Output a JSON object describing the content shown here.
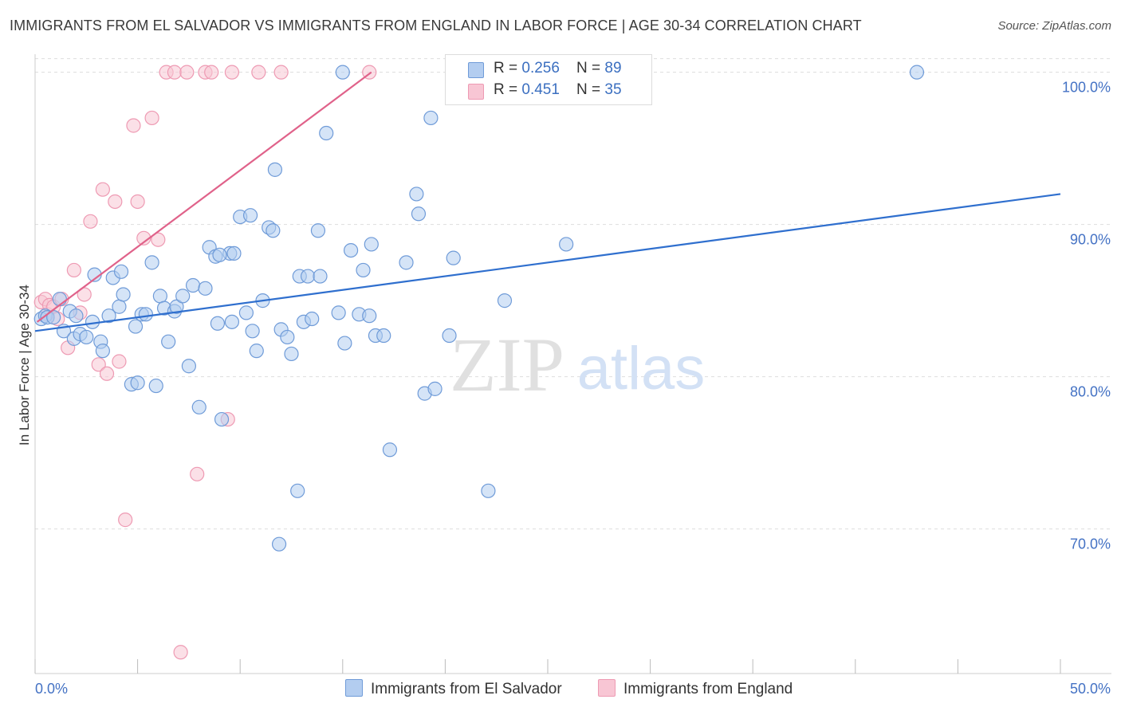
{
  "title": "IMMIGRANTS FROM EL SALVADOR VS IMMIGRANTS FROM ENGLAND IN LABOR FORCE | AGE 30-34 CORRELATION CHART",
  "source": "Source: ZipAtlas.com",
  "watermark": {
    "zip": "ZIP",
    "atlas": "atlas"
  },
  "colors": {
    "blue_fill": "#b3cdf0",
    "blue_stroke": "#6f9bd8",
    "blue_line": "#2f6fce",
    "pink_fill": "#f8c6d4",
    "pink_stroke": "#ee9ab3",
    "pink_line": "#e0628a",
    "axis_text": "#4472c4",
    "grid": "#dddddd"
  },
  "legend": {
    "rows": [
      {
        "r_label": "R = ",
        "r_value": "0.256",
        "n_label": "N = ",
        "n_value": "89"
      },
      {
        "r_label": "R = ",
        "r_value": "0.451",
        "n_label": "N = ",
        "n_value": "35"
      }
    ]
  },
  "bottom_legend": {
    "el_salvador": "Immigrants from El Salvador",
    "england": "Immigrants from England"
  },
  "chart_data": {
    "type": "scatter",
    "title": "IMMIGRANTS FROM EL SALVADOR VS IMMIGRANTS FROM ENGLAND IN LABOR FORCE | AGE 30-34 CORRELATION CHART",
    "xlabel": "",
    "ylabel": "In Labor Force | Age 30-34",
    "xlim": [
      0,
      50
    ],
    "ylim": [
      60.5,
      101.5
    ],
    "x_tick_labels": [
      "0.0%",
      "50.0%"
    ],
    "y_ticks": [
      70,
      80,
      90,
      100
    ],
    "y_tick_labels": [
      "70.0%",
      "80.0%",
      "90.0%",
      "100.0%"
    ],
    "grid": true,
    "legend_position": "top-center",
    "series": [
      {
        "name": "Immigrants from El Salvador",
        "color": "#6f9bd8",
        "R": 0.256,
        "N": 89,
        "trend": {
          "x": [
            0,
            50
          ],
          "y": [
            83.0,
            92.0
          ]
        },
        "points": [
          [
            0.3,
            83.8
          ],
          [
            0.5,
            84.0
          ],
          [
            0.6,
            83.9
          ],
          [
            0.9,
            83.9
          ],
          [
            1.2,
            85.1
          ],
          [
            1.4,
            83.0
          ],
          [
            1.7,
            84.3
          ],
          [
            1.9,
            82.5
          ],
          [
            2.2,
            82.8
          ],
          [
            2.5,
            82.6
          ],
          [
            2.8,
            83.6
          ],
          [
            2.9,
            86.7
          ],
          [
            3.2,
            82.3
          ],
          [
            3.3,
            81.7
          ],
          [
            3.6,
            84.0
          ],
          [
            3.8,
            86.5
          ],
          [
            4.1,
            84.6
          ],
          [
            4.2,
            86.9
          ],
          [
            4.3,
            85.4
          ],
          [
            4.7,
            79.5
          ],
          [
            4.9,
            83.3
          ],
          [
            5.0,
            79.6
          ],
          [
            5.2,
            84.1
          ],
          [
            5.4,
            84.1
          ],
          [
            5.7,
            87.5
          ],
          [
            5.9,
            79.4
          ],
          [
            6.1,
            85.3
          ],
          [
            6.3,
            84.5
          ],
          [
            6.5,
            82.3
          ],
          [
            6.8,
            84.3
          ],
          [
            6.9,
            84.6
          ],
          [
            7.2,
            85.3
          ],
          [
            7.5,
            80.7
          ],
          [
            7.7,
            86.0
          ],
          [
            8.0,
            78.0
          ],
          [
            8.3,
            85.8
          ],
          [
            8.5,
            88.5
          ],
          [
            8.8,
            87.9
          ],
          [
            8.9,
            83.5
          ],
          [
            9.1,
            77.2
          ],
          [
            9.5,
            88.1
          ],
          [
            9.6,
            83.6
          ],
          [
            9.7,
            88.1
          ],
          [
            10.0,
            90.5
          ],
          [
            10.3,
            84.2
          ],
          [
            10.5,
            90.6
          ],
          [
            10.6,
            83.0
          ],
          [
            10.8,
            81.7
          ],
          [
            11.1,
            85.0
          ],
          [
            11.4,
            89.8
          ],
          [
            11.6,
            89.6
          ],
          [
            11.7,
            93.6
          ],
          [
            11.9,
            69.0
          ],
          [
            12.0,
            83.1
          ],
          [
            12.3,
            82.6
          ],
          [
            12.5,
            81.5
          ],
          [
            12.8,
            72.5
          ],
          [
            12.9,
            86.6
          ],
          [
            13.1,
            83.6
          ],
          [
            13.3,
            86.6
          ],
          [
            13.5,
            83.8
          ],
          [
            13.8,
            89.6
          ],
          [
            13.9,
            86.6
          ],
          [
            14.2,
            96.0
          ],
          [
            14.8,
            84.2
          ],
          [
            15.1,
            82.2
          ],
          [
            15.4,
            88.3
          ],
          [
            15.8,
            84.1
          ],
          [
            16.0,
            87.0
          ],
          [
            16.3,
            84.0
          ],
          [
            16.4,
            88.7
          ],
          [
            16.6,
            82.7
          ],
          [
            17.0,
            82.7
          ],
          [
            17.3,
            75.2
          ],
          [
            18.1,
            87.5
          ],
          [
            18.6,
            92.0
          ],
          [
            18.7,
            90.7
          ],
          [
            19.0,
            78.9
          ],
          [
            19.3,
            97.0
          ],
          [
            19.5,
            79.2
          ],
          [
            20.2,
            82.7
          ],
          [
            20.4,
            87.8
          ],
          [
            22.1,
            72.5
          ],
          [
            22.9,
            85.0
          ],
          [
            25.9,
            88.7
          ],
          [
            15.0,
            100.0
          ],
          [
            43.0,
            100.0
          ],
          [
            2.0,
            84.0
          ],
          [
            9.0,
            88.0
          ]
        ]
      },
      {
        "name": "Immigrants from England",
        "color": "#ee9ab3",
        "R": 0.451,
        "N": 35,
        "trend": {
          "x": [
            0.1,
            16.4
          ],
          "y": [
            83.6,
            100.0
          ]
        },
        "points": [
          [
            0.3,
            84.9
          ],
          [
            0.5,
            85.1
          ],
          [
            0.6,
            84.1
          ],
          [
            0.7,
            84.7
          ],
          [
            0.9,
            84.6
          ],
          [
            1.1,
            83.8
          ],
          [
            1.3,
            85.1
          ],
          [
            1.6,
            81.9
          ],
          [
            1.9,
            87.0
          ],
          [
            2.2,
            84.2
          ],
          [
            2.4,
            85.4
          ],
          [
            2.7,
            90.2
          ],
          [
            3.1,
            80.8
          ],
          [
            3.3,
            92.3
          ],
          [
            3.5,
            80.2
          ],
          [
            3.9,
            91.5
          ],
          [
            4.1,
            81.0
          ],
          [
            4.4,
            70.6
          ],
          [
            4.8,
            96.5
          ],
          [
            5.0,
            91.5
          ],
          [
            5.3,
            89.1
          ],
          [
            5.7,
            97.0
          ],
          [
            6.0,
            89.0
          ],
          [
            6.4,
            100.0
          ],
          [
            6.8,
            100.0
          ],
          [
            7.1,
            61.9
          ],
          [
            7.4,
            100.0
          ],
          [
            7.9,
            73.6
          ],
          [
            8.3,
            100.0
          ],
          [
            8.6,
            100.0
          ],
          [
            9.4,
            77.2
          ],
          [
            9.6,
            100.0
          ],
          [
            10.9,
            100.0
          ],
          [
            12.0,
            100.0
          ],
          [
            16.3,
            100.0
          ]
        ]
      }
    ]
  }
}
